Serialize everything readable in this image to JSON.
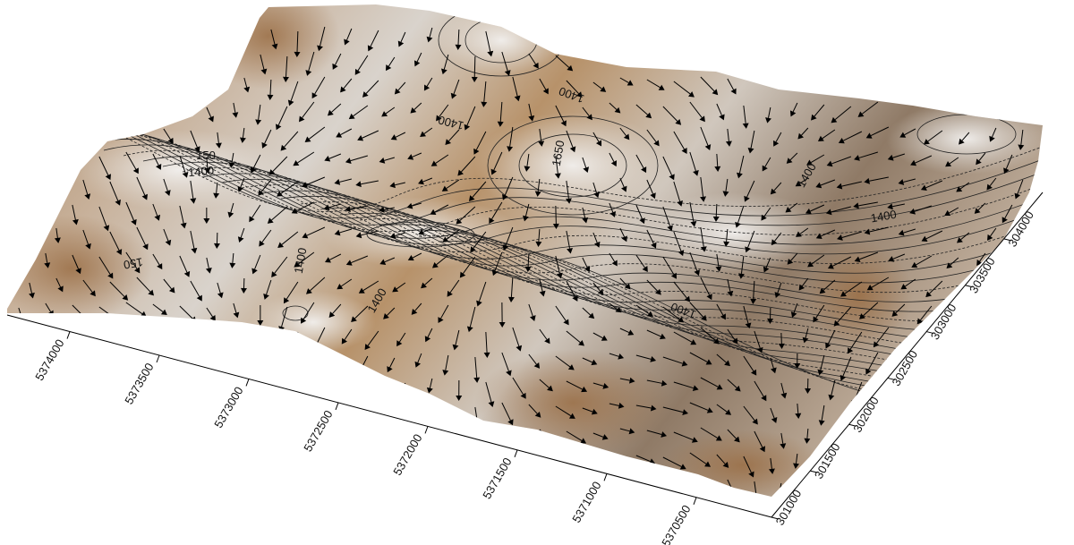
{
  "chart_data": {
    "type": "surface",
    "xlim": [
      5374350,
      5370080
    ],
    "xticks": [
      5374000,
      5373500,
      5373000,
      5372500,
      5372000,
      5371500,
      5371000,
      5370500
    ],
    "ylim": [
      301000,
      304500
    ],
    "yticks": [
      301000,
      301500,
      302000,
      302500,
      303000,
      303500,
      304000
    ],
    "contour_labels": [
      "1400",
      "1400",
      "1400",
      "1650",
      "1400",
      "1400",
      "1400",
      "1400",
      "1400",
      "150",
      "150"
    ]
  }
}
